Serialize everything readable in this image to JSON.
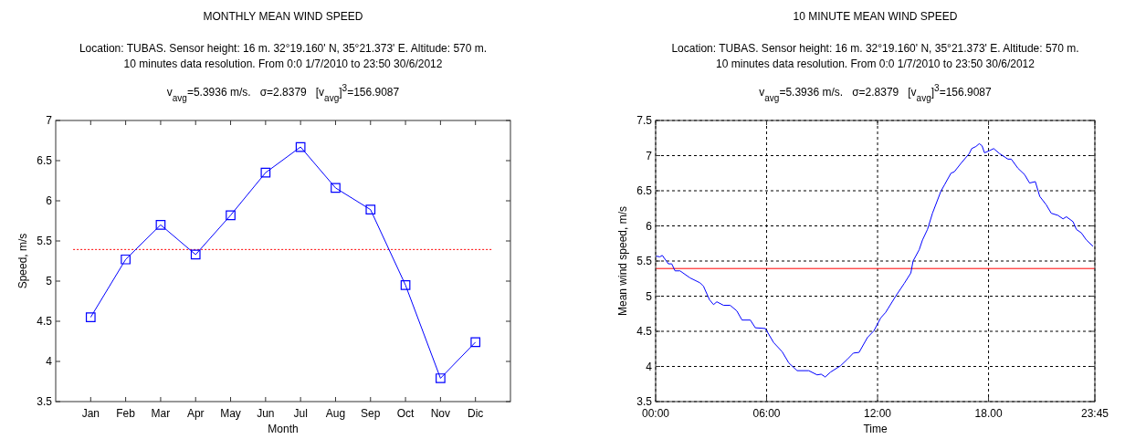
{
  "chart_data": [
    {
      "type": "line",
      "title": "MONTHLY MEAN WIND SPEED",
      "subtitle": "Location: TUBAS. Sensor height: 16 m. 32°19.160' N, 35°21.373' E. Altitude: 570 m.\n10 minutes data resolution. From 0:0 1/7/2010 to 23:50 30/6/2012",
      "annotations": [
        "v$_{avg}$=5.3936 m/s.   σ=2.8379   [v$_{avg}$]$^{3}$=156.9087"
      ],
      "xlabel": "Month",
      "ylabel": "Speed, m/s",
      "categories": [
        "Jan",
        "Feb",
        "Mar",
        "Apr",
        "May",
        "Jun",
        "Jul",
        "Aug",
        "Sep",
        "Oct",
        "Nov",
        "Dic"
      ],
      "series": [
        {
          "color": "#0000ff",
          "values": [
            4.55,
            5.27,
            5.7,
            5.33,
            5.82,
            6.35,
            6.67,
            6.16,
            5.89,
            4.95,
            3.79,
            4.24
          ]
        }
      ],
      "ylim": [
        3.5,
        7
      ],
      "yticks": [
        3.5,
        4,
        4.5,
        5,
        5.5,
        6,
        6.5,
        7
      ],
      "grid": false,
      "marker": "square",
      "line_style": "solid",
      "ref_lines": [
        {
          "axis": "y",
          "value": 5.3936,
          "color": "#ff0000",
          "line_style": "dotted"
        }
      ]
    },
    {
      "type": "line",
      "title": "10 MINUTE MEAN WIND SPEED",
      "subtitle": "Location: TUBAS. Sensor height: 16 m. 32°19.160' N, 35°21.373' E. Altitude: 570 m.\n10 minutes data resolution. From 0:0 1/7/2010 to 23:50 30/6/2012",
      "annotations": [
        "v$_{avg}$=5.3936 m/s.   σ=2.8379   [v$_{avg}$]$^{3}$=156.9087"
      ],
      "xlabel": "Time",
      "ylabel": "Mean wind speed, m/s",
      "x": [
        0,
        0.23,
        0.36,
        0.69,
        0.87,
        1.05,
        1.32,
        1.86,
        2.4,
        2.59,
        2.91,
        3.13,
        3.31,
        3.67,
        4.03,
        4.39,
        4.67,
        5.12,
        5.39,
        5.93,
        6.38,
        6.84,
        7.2,
        7.65,
        8.28,
        8.73,
        8.95,
        9.17,
        9.46,
        10,
        10.36,
        10.69,
        11,
        11.45,
        11.81,
        12.17,
        12.44,
        12.98,
        13.44,
        13.8,
        13.92,
        14.25,
        14.43,
        14.7,
        14.97,
        15.42,
        15.61,
        15.97,
        16.15,
        16.51,
        16.96,
        17.09,
        17.32,
        17.5,
        17.65,
        17.78,
        18.05,
        18.28,
        18.59,
        19.05,
        19.23,
        19.59,
        19.95,
        20.22,
        20.53,
        20.77,
        21.12,
        21.39,
        21.75,
        22.03,
        22.21,
        22.57,
        22.75,
        23.02,
        23.29,
        23.65
      ],
      "series": [
        {
          "color": "#0000ff",
          "values": [
            5.57,
            5.56,
            5.58,
            5.46,
            5.46,
            5.36,
            5.36,
            5.26,
            5.19,
            5.14,
            4.95,
            4.88,
            4.92,
            4.87,
            4.87,
            4.79,
            4.66,
            4.66,
            4.55,
            4.54,
            4.34,
            4.21,
            4.05,
            3.94,
            3.94,
            3.88,
            3.89,
            3.85,
            3.92,
            4.01,
            4.1,
            4.19,
            4.2,
            4.41,
            4.51,
            4.69,
            4.77,
            5,
            5.18,
            5.33,
            5.5,
            5.66,
            5.8,
            5.95,
            6.18,
            6.49,
            6.58,
            6.75,
            6.77,
            6.89,
            7.03,
            7.1,
            7.13,
            7.17,
            7.14,
            7.04,
            7.07,
            7.1,
            7.03,
            6.95,
            6.95,
            6.82,
            6.73,
            6.61,
            6.63,
            6.42,
            6.3,
            6.18,
            6.15,
            6.1,
            6.13,
            6.06,
            5.95,
            5.9,
            5.8,
            5.71
          ]
        }
      ],
      "xlim": [
        0,
        23.75
      ],
      "xticks": [
        {
          "value": 0,
          "label": "00:00"
        },
        {
          "value": 6,
          "label": "06:00"
        },
        {
          "value": 12,
          "label": "12:00"
        },
        {
          "value": 18,
          "label": "18.00"
        },
        {
          "value": 23.75,
          "label": "23:45"
        }
      ],
      "ylim": [
        3.5,
        7.5
      ],
      "yticks": [
        3.5,
        4,
        4.5,
        5,
        5.5,
        6,
        6.5,
        7,
        7.5
      ],
      "grid": true,
      "marker": "none",
      "line_style": "solid",
      "ref_lines": [
        {
          "axis": "y",
          "value": 5.3936,
          "color": "#ff0000",
          "line_style": "solid"
        }
      ]
    }
  ]
}
